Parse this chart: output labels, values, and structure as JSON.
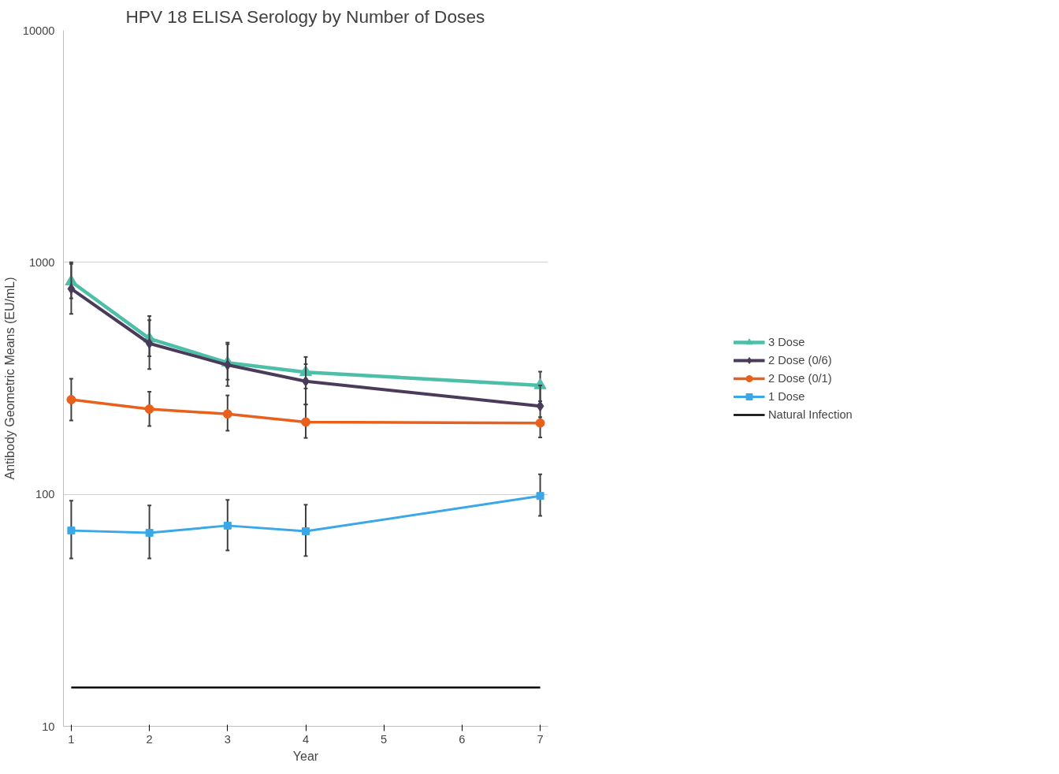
{
  "chart_data": {
    "type": "line",
    "title": "HPV 18 ELISA Serology by Number of Doses",
    "xlabel": "Year",
    "ylabel": "Antibody Geometric Means (EU/mL)",
    "x": [
      1,
      2,
      3,
      4,
      7
    ],
    "xlim": [
      0.9,
      7.1
    ],
    "xticks": [
      1,
      2,
      3,
      4,
      5,
      6,
      7
    ],
    "log": "y",
    "ylim": [
      10,
      10000
    ],
    "yticks": [
      10,
      100,
      1000,
      10000
    ],
    "grid": "y",
    "legend": "right",
    "series": [
      {
        "name": "3 Dose",
        "color": "#4dbfa8",
        "marker": "triangle",
        "values": [
          826,
          469,
          369,
          336,
          295
        ],
        "errors": [
          [
            700,
            1000
          ],
          [
            394,
            587
          ],
          [
            312,
            451
          ],
          [
            286,
            391
          ],
          [
            252,
            338
          ]
        ]
      },
      {
        "name": "2 Dose (0/6)",
        "color": "#4b3b5a",
        "marker": "diamond",
        "values": [
          769,
          447,
          361,
          307,
          240
        ],
        "errors": [
          [
            600,
            985
          ],
          [
            347,
            563
          ],
          [
            293,
            444
          ],
          [
            244,
            364
          ],
          [
            199,
            295
          ]
        ]
      },
      {
        "name": "2 Dose (0/1)",
        "color": "#e8601c",
        "marker": "circle",
        "values": [
          256,
          233,
          222,
          205,
          203
        ],
        "errors": [
          [
            208,
            315
          ],
          [
            197,
            277
          ],
          [
            188,
            267
          ],
          [
            175,
            244
          ],
          [
            176,
            215
          ]
        ]
      },
      {
        "name": "1 Dose",
        "color": "#3aa8e8",
        "marker": "square",
        "values": [
          69.8,
          68.2,
          73.3,
          69.3,
          98.4
        ],
        "errors": [
          [
            52.9,
            93.8
          ],
          [
            52.9,
            89.5
          ],
          [
            57.3,
            94.6
          ],
          [
            54.2,
            90.2
          ],
          [
            80.7,
            122
          ]
        ]
      },
      {
        "name": "Natural Infection",
        "color": "#000000",
        "marker": "none",
        "x": [
          1,
          7
        ],
        "values": [
          14.7,
          14.7
        ]
      }
    ]
  }
}
